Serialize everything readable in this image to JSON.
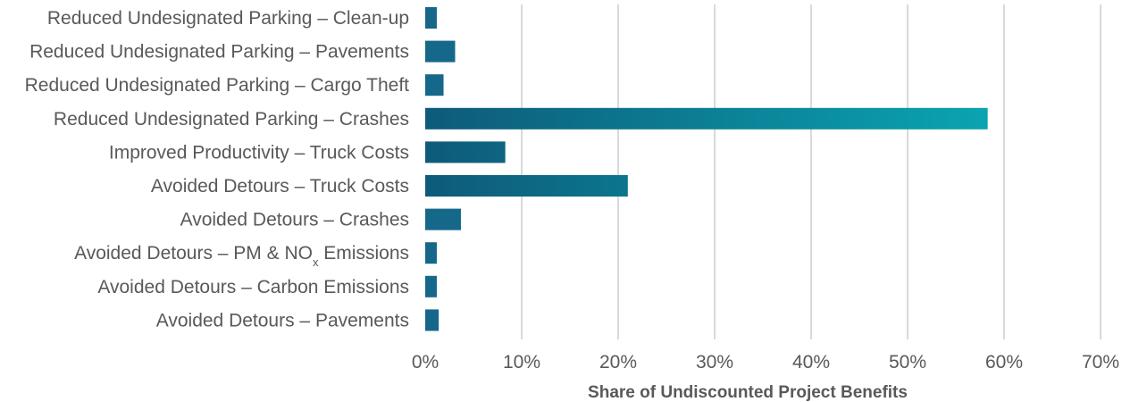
{
  "chart_data": {
    "type": "bar",
    "orientation": "horizontal",
    "categories": [
      "Reduced Undesignated Parking – Clean-up",
      "Reduced Undesignated Parking – Pavements",
      "Reduced Undesignated Parking – Cargo Theft",
      "Reduced Undesignated Parking – Crashes",
      "Improved Productivity – Truck Costs",
      "Avoided Detours – Truck Costs",
      "Avoided Detours – Crashes",
      "Avoided Detours – PM & NOx Emissions",
      "Avoided Detours – Carbon Emissions",
      "Avoided Detours – Pavements"
    ],
    "values": [
      1.2,
      3.1,
      1.9,
      58.3,
      8.3,
      21.0,
      3.7,
      1.2,
      1.2,
      1.4
    ],
    "value_unit": "%",
    "xlabel": "Share of Undiscounted Project Benefits",
    "xlim": [
      0,
      70
    ],
    "xticks": [
      "0%",
      "10%",
      "20%",
      "30%",
      "40%",
      "50%",
      "60%",
      "70%"
    ],
    "grid": "vertical",
    "colors": {
      "bar_start": "#0e5a7a",
      "bar_end": "#0aa4b0",
      "bar_short": "#15688a"
    }
  }
}
